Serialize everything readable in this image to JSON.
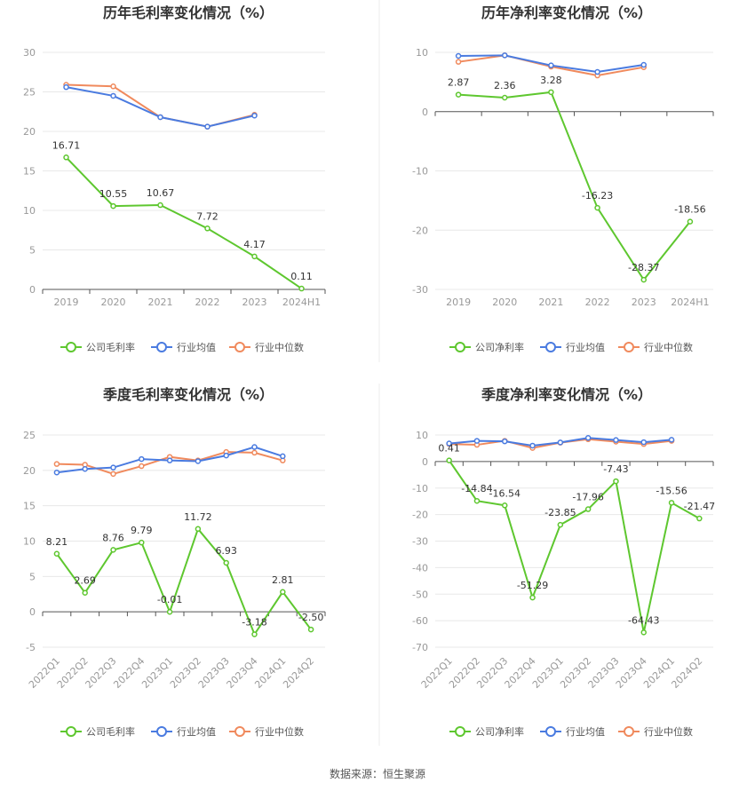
{
  "colors": {
    "company": "#5ec72f",
    "industry_avg": "#4a7be0",
    "industry_median": "#f08a5d",
    "grid": "#e8e8e8",
    "axis": "#555555",
    "divider": "#eeeeee"
  },
  "source_text": "数据来源：恒生聚源",
  "chart_data": [
    {
      "type": "line",
      "title": "历年毛利率变化情况（%）",
      "categories": [
        "2019",
        "2020",
        "2021",
        "2022",
        "2023",
        "2024H1"
      ],
      "ylim": [
        0,
        30
      ],
      "yticks": [
        0,
        5,
        10,
        15,
        20,
        25,
        30
      ],
      "x_rotated": false,
      "legend": [
        "公司毛利率",
        "行业均值",
        "行业中位数"
      ],
      "series": [
        {
          "name": "公司毛利率",
          "values": [
            16.71,
            10.55,
            10.67,
            7.72,
            4.17,
            0.11
          ],
          "labels": [
            "16.71",
            "10.55",
            "10.67",
            "7.72",
            "4.17",
            "0.11"
          ]
        },
        {
          "name": "行业均值",
          "values": [
            25.6,
            24.5,
            21.8,
            20.6,
            22.0,
            null
          ]
        },
        {
          "name": "行业中位数",
          "values": [
            25.9,
            25.7,
            21.8,
            20.6,
            22.1,
            null
          ]
        }
      ]
    },
    {
      "type": "line",
      "title": "历年净利率变化情况（%）",
      "categories": [
        "2019",
        "2020",
        "2021",
        "2022",
        "2023",
        "2024H1"
      ],
      "ylim": [
        -30,
        10
      ],
      "yticks": [
        -30,
        -20,
        -10,
        0,
        10
      ],
      "x_rotated": false,
      "legend": [
        "公司净利率",
        "行业均值",
        "行业中位数"
      ],
      "series": [
        {
          "name": "公司净利率",
          "values": [
            2.87,
            2.36,
            3.28,
            -16.23,
            -28.37,
            -18.56
          ],
          "labels": [
            "2.87",
            "2.36",
            "3.28",
            "-16.23",
            "-28.37",
            "-18.56"
          ]
        },
        {
          "name": "行业均值",
          "values": [
            9.4,
            9.5,
            7.8,
            6.7,
            7.9,
            null
          ]
        },
        {
          "name": "行业中位数",
          "values": [
            8.4,
            9.5,
            7.6,
            6.1,
            7.5,
            null
          ]
        }
      ]
    },
    {
      "type": "line",
      "title": "季度毛利率变化情况（%）",
      "categories": [
        "2022Q1",
        "2022Q2",
        "2022Q3",
        "2022Q4",
        "2023Q1",
        "2023Q2",
        "2023Q3",
        "2023Q4",
        "2024Q1",
        "2024Q2"
      ],
      "ylim": [
        -5,
        25
      ],
      "yticks": [
        -5,
        0,
        5,
        10,
        15,
        20,
        25
      ],
      "x_rotated": true,
      "legend": [
        "公司毛利率",
        "行业均值",
        "行业中位数"
      ],
      "series": [
        {
          "name": "公司毛利率",
          "values": [
            8.21,
            2.69,
            8.76,
            9.79,
            -0.01,
            11.72,
            6.93,
            -3.18,
            2.81,
            -2.5
          ],
          "labels": [
            "8.21",
            "2.69",
            "8.76",
            "9.79",
            "-0.01",
            "11.72",
            "6.93",
            "-3.18",
            "2.81",
            "-2.50"
          ]
        },
        {
          "name": "行业均值",
          "values": [
            19.7,
            20.2,
            20.4,
            21.6,
            21.4,
            21.3,
            22.1,
            23.3,
            22.0,
            null
          ]
        },
        {
          "name": "行业中位数",
          "values": [
            20.9,
            20.8,
            19.5,
            20.6,
            21.9,
            21.4,
            22.6,
            22.5,
            21.4,
            null
          ]
        }
      ]
    },
    {
      "type": "line",
      "title": "季度净利率变化情况（%）",
      "categories": [
        "2022Q1",
        "2022Q2",
        "2022Q3",
        "2022Q4",
        "2023Q1",
        "2023Q2",
        "2023Q3",
        "2023Q4",
        "2024Q1",
        "2024Q2"
      ],
      "ylim": [
        -70,
        10
      ],
      "yticks": [
        -70,
        -60,
        -50,
        -40,
        -30,
        -20,
        -10,
        0,
        10
      ],
      "x_rotated": true,
      "legend": [
        "公司净利率",
        "行业均值",
        "行业中位数"
      ],
      "series": [
        {
          "name": "公司净利率",
          "values": [
            0.41,
            -14.84,
            -16.54,
            -51.29,
            -23.85,
            -17.96,
            -7.43,
            -64.43,
            -15.56,
            -21.47
          ],
          "labels": [
            "0.41",
            "-14.84",
            "-16.54",
            "-51.29",
            "-23.85",
            "-17.96",
            "-7.43",
            "-64.43",
            "-15.56",
            "-21.47"
          ]
        },
        {
          "name": "行业均值",
          "values": [
            6.8,
            7.8,
            7.6,
            6.0,
            7.2,
            8.9,
            8.1,
            7.3,
            8.2,
            null
          ]
        },
        {
          "name": "行业中位数",
          "values": [
            6.6,
            6.3,
            7.8,
            5.1,
            7.1,
            8.4,
            7.5,
            6.6,
            7.8,
            null
          ]
        }
      ]
    }
  ]
}
